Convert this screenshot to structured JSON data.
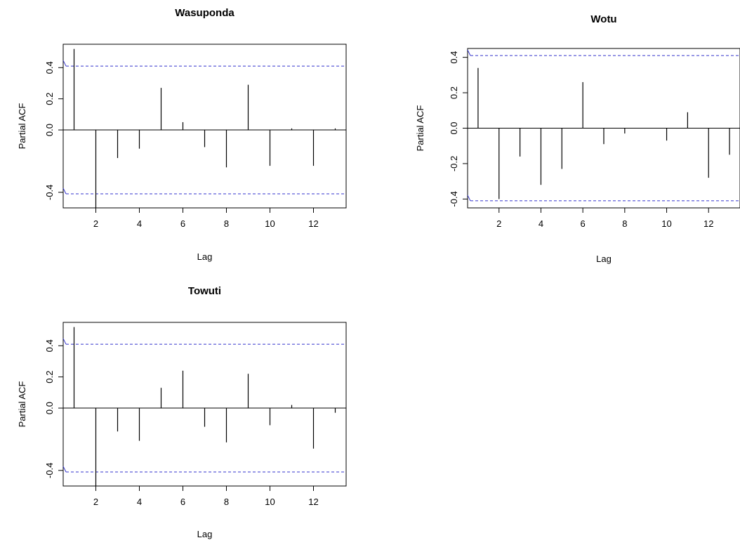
{
  "chart_data": [
    {
      "type": "bar",
      "title": "Wasuponda",
      "xlabel": "Lag",
      "ylabel": "Partial ACF",
      "xlim": [
        0.5,
        13.5
      ],
      "ylim": [
        -0.5,
        0.55
      ],
      "xticks": [
        2,
        4,
        6,
        8,
        10,
        12
      ],
      "yticks": [
        -0.4,
        0.0,
        0.2,
        0.4
      ],
      "ytick_labels": [
        "-0.4",
        "0.0",
        "0.2",
        "0.4"
      ],
      "confidence_bound": 0.41,
      "x": [
        1,
        2,
        3,
        4,
        5,
        6,
        7,
        8,
        9,
        10,
        11,
        12,
        13
      ],
      "values": [
        0.52,
        -0.5,
        -0.18,
        -0.12,
        0.27,
        0.05,
        -0.11,
        -0.24,
        0.29,
        -0.23,
        0.01,
        -0.23,
        0.01
      ]
    },
    {
      "type": "bar",
      "title": "Wotu",
      "xlabel": "Lag",
      "ylabel": "Partial ACF",
      "xlim": [
        0.5,
        13.5
      ],
      "ylim": [
        -0.45,
        0.45
      ],
      "xticks": [
        2,
        4,
        6,
        8,
        10,
        12
      ],
      "yticks": [
        -0.4,
        -0.2,
        0.0,
        0.2,
        0.4
      ],
      "ytick_labels": [
        "-0.4",
        "-0.2",
        "0.0",
        "0.2",
        "0.4"
      ],
      "confidence_bound": 0.41,
      "x": [
        1,
        2,
        3,
        4,
        5,
        6,
        7,
        8,
        9,
        10,
        11,
        12,
        13
      ],
      "values": [
        0.34,
        -0.4,
        -0.16,
        -0.32,
        -0.23,
        0.26,
        -0.09,
        -0.03,
        0.0,
        -0.07,
        0.09,
        -0.28,
        -0.15
      ]
    },
    {
      "type": "bar",
      "title": "Towuti",
      "xlabel": "Lag",
      "ylabel": "Partial ACF",
      "xlim": [
        0.5,
        13.5
      ],
      "ylim": [
        -0.5,
        0.55
      ],
      "xticks": [
        2,
        4,
        6,
        8,
        10,
        12
      ],
      "yticks": [
        -0.4,
        0.0,
        0.2,
        0.4
      ],
      "ytick_labels": [
        "-0.4",
        "0.0",
        "0.2",
        "0.4"
      ],
      "confidence_bound": 0.41,
      "x": [
        1,
        2,
        3,
        4,
        5,
        6,
        7,
        8,
        9,
        10,
        11,
        12,
        13
      ],
      "values": [
        0.52,
        -0.5,
        -0.15,
        -0.21,
        0.13,
        0.24,
        -0.12,
        -0.22,
        0.22,
        -0.11,
        0.02,
        -0.26,
        -0.03
      ]
    }
  ],
  "colors": {
    "bound_line": "#3333cc",
    "spike": "#000000",
    "axis": "#000000"
  }
}
